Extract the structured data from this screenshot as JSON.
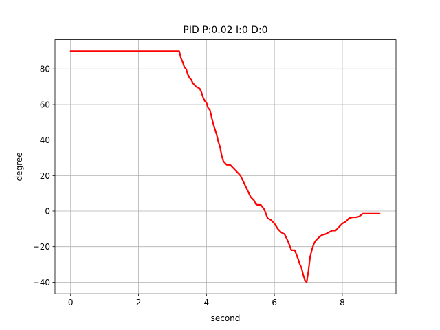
{
  "chart_data": {
    "type": "line",
    "title": "PID P:0.02 I:0 D:0",
    "xlabel": "second",
    "ylabel": "degree",
    "xlim": [
      -0.46,
      9.58
    ],
    "ylim": [
      -46.5,
      96.5
    ],
    "xticks": [
      0,
      2,
      4,
      6,
      8
    ],
    "yticks": [
      -40,
      -20,
      0,
      20,
      40,
      60,
      80
    ],
    "grid": true,
    "series": [
      {
        "color": "#ff0000",
        "x": [
          0,
          0.5,
          1,
          1.5,
          2,
          2.5,
          3,
          3.2,
          3.25,
          3.3,
          3.35,
          3.4,
          3.45,
          3.5,
          3.55,
          3.6,
          3.65,
          3.7,
          3.75,
          3.8,
          3.85,
          3.9,
          3.95,
          4.0,
          4.05,
          4.1,
          4.15,
          4.2,
          4.25,
          4.3,
          4.35,
          4.4,
          4.45,
          4.5,
          4.55,
          4.6,
          4.65,
          4.7,
          4.8,
          4.9,
          5.0,
          5.1,
          5.2,
          5.3,
          5.4,
          5.45,
          5.5,
          5.6,
          5.7,
          5.8,
          5.9,
          6.0,
          6.1,
          6.2,
          6.3,
          6.4,
          6.5,
          6.6,
          6.7,
          6.75,
          6.8,
          6.85,
          6.9,
          6.95,
          7.0,
          7.05,
          7.1,
          7.15,
          7.2,
          7.3,
          7.4,
          7.5,
          7.6,
          7.7,
          7.8,
          7.9,
          8.0,
          8.1,
          8.2,
          8.3,
          8.4,
          8.5,
          8.6,
          8.7,
          8.8,
          8.9,
          9.0,
          9.1
        ],
        "y": [
          90,
          90,
          90,
          90,
          90,
          90,
          90,
          90,
          86,
          84,
          81,
          80,
          77,
          75,
          74,
          72,
          71,
          70,
          69.5,
          69,
          67,
          64,
          62,
          61,
          58,
          57,
          53,
          49,
          46,
          43,
          39,
          36,
          31,
          28,
          27,
          26,
          26,
          26,
          24,
          22,
          20,
          16,
          12,
          8,
          6,
          4,
          3.5,
          3.5,
          1,
          -4,
          -5,
          -7,
          -10,
          -12,
          -13,
          -17,
          -22,
          -22,
          -27,
          -30,
          -32,
          -36,
          -39,
          -40,
          -34,
          -26,
          -22,
          -19,
          -17,
          -15,
          -13.5,
          -13,
          -12,
          -11,
          -11,
          -9,
          -7,
          -6,
          -4,
          -3.5,
          -3.5,
          -3,
          -1.5,
          -1.5,
          -1.5,
          -1.5,
          -1.5,
          -1.5
        ]
      }
    ]
  }
}
